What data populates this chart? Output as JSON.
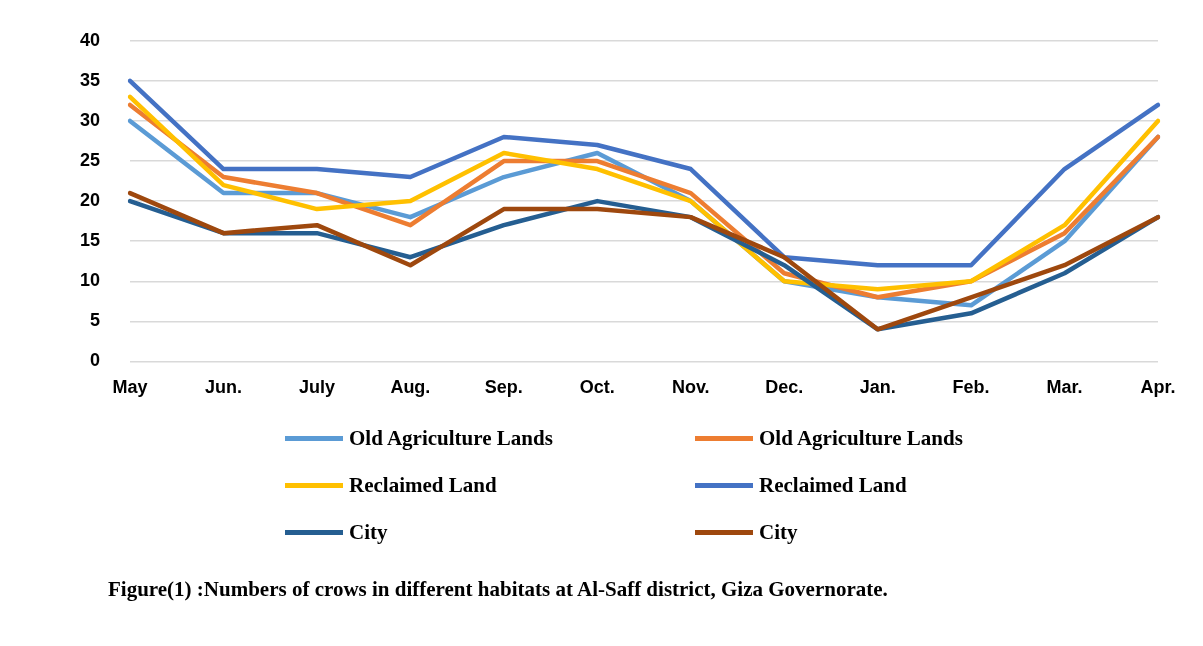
{
  "chart_data": {
    "type": "line",
    "annotations": [
      "Figure(1) :Numbers of crows in different habitats at Al-Saff district, Giza Governorate."
    ],
    "categories": [
      "May",
      "Jun.",
      "July",
      "Aug.",
      "Sep.",
      "Oct.",
      "Nov.",
      "Dec.",
      "Jan.",
      "Feb.",
      "Mar.",
      "Apr."
    ],
    "series": [
      {
        "name": "Old Agriculture Lands",
        "color": "#5b9bd5",
        "values": [
          30,
          21,
          21,
          18,
          23,
          26,
          20,
          10,
          8,
          7,
          15,
          28
        ]
      },
      {
        "name": "Old Agriculture Lands",
        "color": "#ed7d31",
        "values": [
          32,
          23,
          21,
          17,
          25,
          25,
          21,
          11,
          8,
          10,
          16,
          28
        ]
      },
      {
        "name": "Reclaimed Land",
        "color": "#ffc000",
        "values": [
          33,
          22,
          19,
          20,
          26,
          24,
          20,
          10,
          9,
          10,
          17,
          30
        ]
      },
      {
        "name": "Reclaimed Land",
        "color": "#4472c4",
        "values": [
          35,
          24,
          24,
          23,
          28,
          27,
          24,
          13,
          12,
          12,
          24,
          32
        ]
      },
      {
        "name": "City",
        "color": "#255e91",
        "values": [
          20,
          16,
          16,
          13,
          17,
          20,
          18,
          12,
          4,
          6,
          11,
          18
        ]
      },
      {
        "name": "City",
        "color": "#9e480e",
        "values": [
          21,
          16,
          17,
          12,
          19,
          19,
          18,
          13,
          4,
          8,
          12,
          18
        ]
      }
    ],
    "ylim": [
      0,
      40
    ],
    "yticks": [
      0,
      5,
      10,
      15,
      20,
      25,
      30,
      35,
      40
    ],
    "grid": "y",
    "legend": "bottom",
    "marker": "none",
    "line_style": "solid"
  }
}
